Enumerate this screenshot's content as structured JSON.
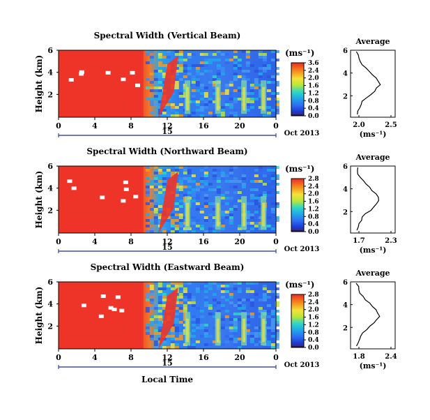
{
  "figure": {
    "xlabel": "Local Time",
    "date_label": "Oct 2013",
    "day_label": "15",
    "ylabel": "Height (km)",
    "unit": "(ms⁻¹)",
    "avg_title": "Average",
    "avg_xlabel": "(ms⁻¹)"
  },
  "chart_data": [
    {
      "type": "heatmap",
      "title": "Spectral Width (Vertical Beam)",
      "x_ticks": [
        "0",
        "4",
        "8",
        "12",
        "16",
        "20",
        "0"
      ],
      "y_ticks": [
        "6",
        "4",
        "2"
      ],
      "colorbar_ticks": [
        "3.6",
        "2.4",
        "2.0",
        "1.6",
        "1.2",
        "0.8",
        "0.4",
        "0.0"
      ],
      "colorbar_range": [
        0,
        3.6
      ],
      "average": {
        "x_ticks": [
          "2.0",
          "2.5"
        ],
        "y_ticks": [
          "6",
          "4",
          "2"
        ],
        "xlim": [
          1.7,
          2.5
        ]
      }
    },
    {
      "type": "heatmap",
      "title": "Spectral Width (Northward Beam)",
      "x_ticks": [
        "0",
        "4",
        "8",
        "12",
        "16",
        "20",
        "0"
      ],
      "y_ticks": [
        "6",
        "4",
        "2"
      ],
      "colorbar_ticks": [
        "2.8",
        "2.4",
        "2.0",
        "1.6",
        "1.2",
        "0.8",
        "0.4",
        "0.0"
      ],
      "colorbar_range": [
        0,
        2.8
      ],
      "average": {
        "x_ticks": [
          "1.7",
          "2.3"
        ],
        "y_ticks": [
          "6",
          "4",
          "2"
        ],
        "xlim": [
          1.7,
          2.3
        ]
      }
    },
    {
      "type": "heatmap",
      "title": "Spectral Width (Eastward Beam)",
      "x_ticks": [
        "0",
        "4",
        "8",
        "12",
        "16",
        "20",
        "0"
      ],
      "y_ticks": [
        "6",
        "4",
        "2"
      ],
      "colorbar_ticks": [
        "2.8",
        "2.4",
        "2.0",
        "1.6",
        "1.2",
        "0.8",
        "0.4",
        "0.0"
      ],
      "colorbar_range": [
        0,
        2.8
      ],
      "average": {
        "x_ticks": [
          "1.8",
          "2.4"
        ],
        "y_ticks": [
          "6",
          "4",
          "2"
        ],
        "xlim": [
          1.8,
          2.4
        ]
      }
    }
  ]
}
